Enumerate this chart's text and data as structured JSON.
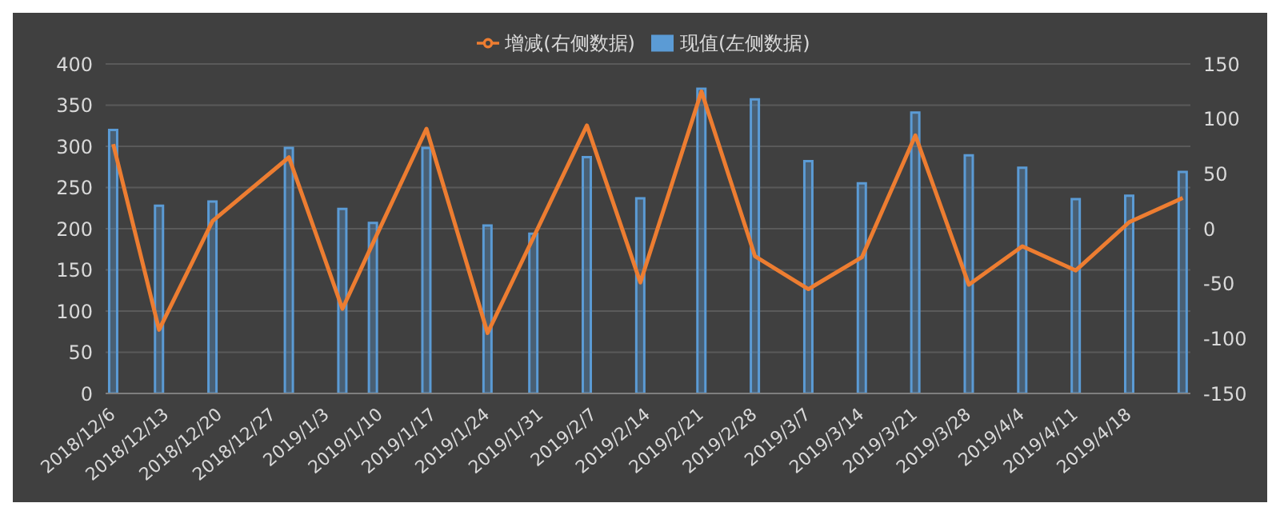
{
  "chart_data": {
    "type": "bar",
    "x": [
      "2018-12-06",
      "2018-12-12",
      "2018-12-19",
      "2018-12-29",
      "2019-01-05",
      "2019-01-09",
      "2019-01-16",
      "2019-01-24",
      "2019-01-30",
      "2019-02-06",
      "2019-02-13",
      "2019-02-21",
      "2019-02-28",
      "2019-03-07",
      "2019-03-14",
      "2019-03-21",
      "2019-03-28",
      "2019-04-04",
      "2019-04-11",
      "2019-04-18",
      "2019-04-25"
    ],
    "series": [
      {
        "name": "现值(左侧数据)",
        "color": "#5b9bd5",
        "values": [
          320,
          228,
          233,
          298,
          224,
          207,
          298,
          204,
          194,
          287,
          237,
          370,
          357,
          282,
          255,
          341,
          289,
          274,
          236,
          240,
          269
        ]
      },
      {
        "name": "增减(右侧数据)",
        "type": "line",
        "axis": "y2",
        "color": "#ed7d31",
        "values": [
          77,
          -92,
          7,
          65,
          -73,
          -13,
          91,
          -95,
          -8,
          94,
          -49,
          125,
          -25,
          -55,
          -26,
          85,
          -51,
          -16,
          -38,
          6,
          28
        ]
      }
    ],
    "xlim": [
      "2018-12-05",
      "2019-04-26"
    ],
    "xticks": [
      {
        "value": "2018-12-06",
        "label": "2018/12/6"
      },
      {
        "value": "2018-12-13",
        "label": "2018/12/13"
      },
      {
        "value": "2018-12-20",
        "label": "2018/12/20"
      },
      {
        "value": "2018-12-27",
        "label": "2018/12/27"
      },
      {
        "value": "2019-01-03",
        "label": "2019/1/3"
      },
      {
        "value": "2019-01-10",
        "label": "2019/1/10"
      },
      {
        "value": "2019-01-17",
        "label": "2019/1/17"
      },
      {
        "value": "2019-01-24",
        "label": "2019/1/24"
      },
      {
        "value": "2019-01-31",
        "label": "2019/1/31"
      },
      {
        "value": "2019-02-07",
        "label": "2019/2/7"
      },
      {
        "value": "2019-02-14",
        "label": "2019/2/14"
      },
      {
        "value": "2019-02-21",
        "label": "2019/2/21"
      },
      {
        "value": "2019-02-28",
        "label": "2019/2/28"
      },
      {
        "value": "2019-03-07",
        "label": "2019/3/7"
      },
      {
        "value": "2019-03-14",
        "label": "2019/3/14"
      },
      {
        "value": "2019-03-21",
        "label": "2019/3/21"
      },
      {
        "value": "2019-03-28",
        "label": "2019/3/28"
      },
      {
        "value": "2019-04-04",
        "label": "2019/4/4"
      },
      {
        "value": "2019-04-11",
        "label": "2019/4/11"
      },
      {
        "value": "2019-04-18",
        "label": "2019/4/18"
      }
    ],
    "ylim": [
      0,
      400
    ],
    "yticks": [
      0,
      50,
      100,
      150,
      200,
      250,
      300,
      350,
      400
    ],
    "y2lim": [
      -150,
      150
    ],
    "y2ticks": [
      -150,
      -100,
      -50,
      0,
      50,
      100,
      150
    ],
    "grid": "y",
    "legend": "top",
    "marker": "none",
    "line_style": "solid"
  }
}
